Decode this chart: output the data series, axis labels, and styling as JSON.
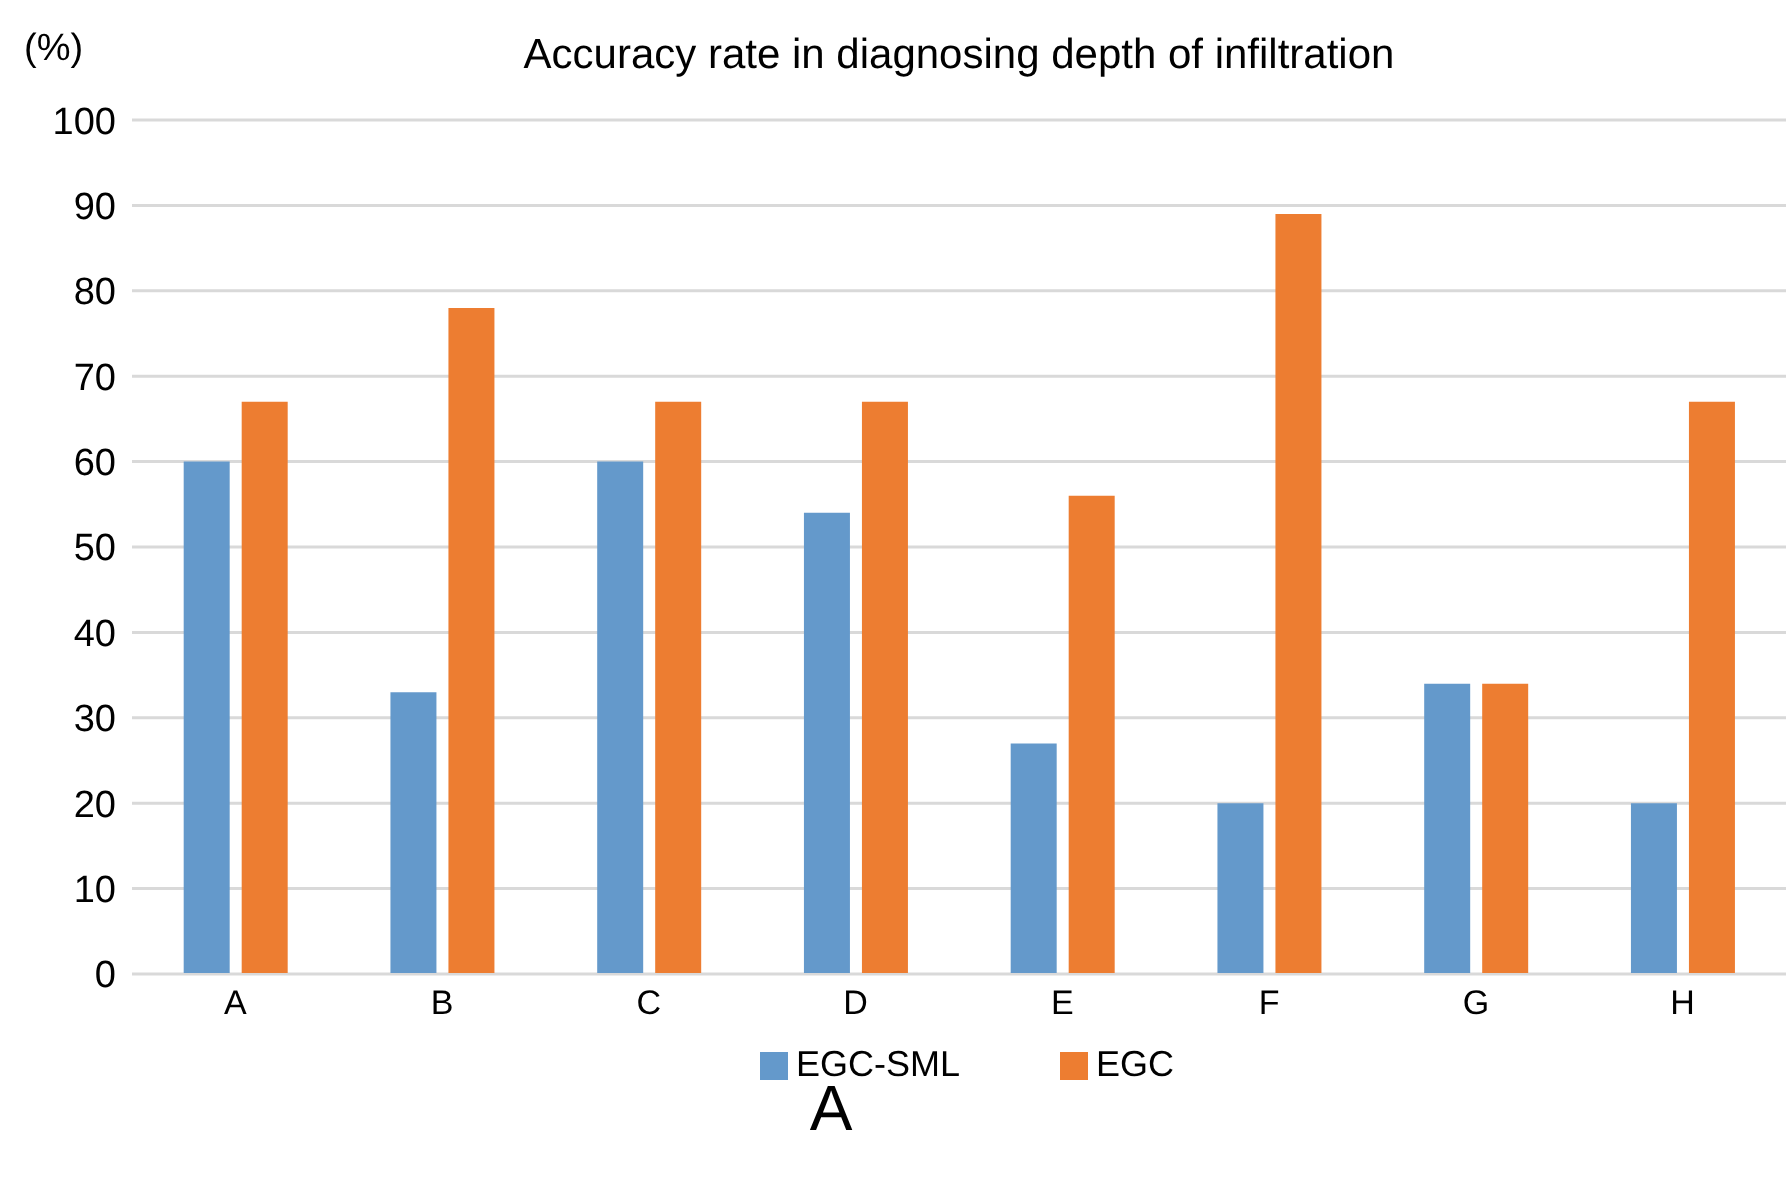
{
  "chart_data": {
    "type": "bar",
    "title": "Accuracy rate in diagnosing depth of infiltration",
    "ylabel": "(%)",
    "categories": [
      "A",
      "B",
      "C",
      "D",
      "E",
      "F",
      "G",
      "H"
    ],
    "series": [
      {
        "name": "EGC-SML",
        "color": "#6499cb",
        "values": [
          60,
          33,
          60,
          54,
          27,
          20,
          34,
          20
        ]
      },
      {
        "name": "EGC",
        "color": "#ed7d31",
        "values": [
          67,
          78,
          67,
          67,
          56,
          89,
          34,
          67
        ]
      }
    ],
    "ylim": [
      0,
      100
    ],
    "yticks": [
      0,
      10,
      20,
      30,
      40,
      50,
      60,
      70,
      80,
      90,
      100
    ],
    "grid": "y",
    "legend": "bottom",
    "annotations": [
      "A"
    ]
  }
}
